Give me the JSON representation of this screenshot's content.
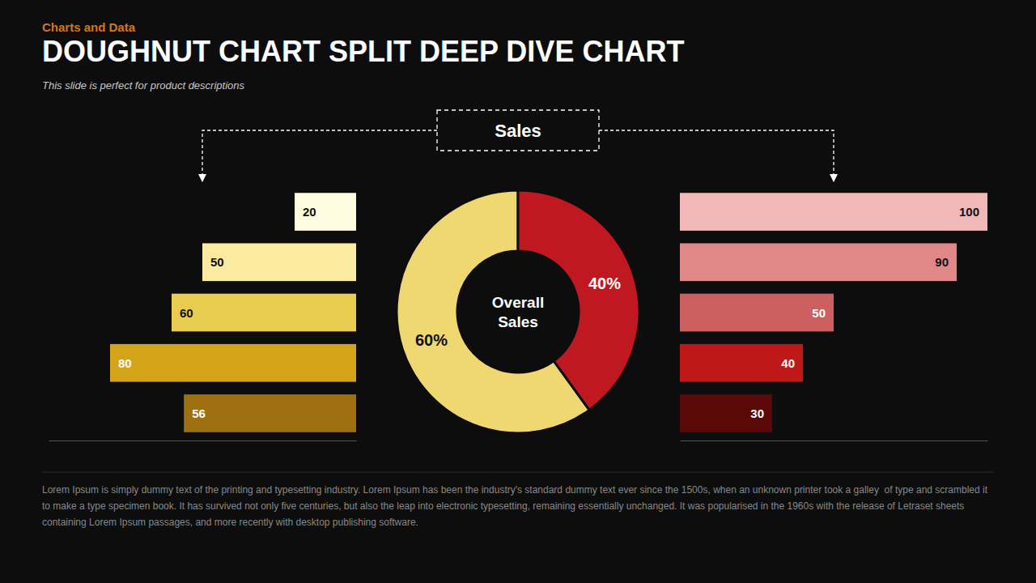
{
  "chart_data": [
    {
      "type": "donut",
      "title": "DOUGHNUT CHART SPLIT DEEP DIVE CHART",
      "subtitle": "This slide is perfect for product descriptions",
      "annotations": [
        "Charts and Data",
        "Overall\nSales",
        "Sales",
        "Lorem Ipsum is simply dummy text of the printing and typesetting industry. Lorem Ipsum has been the industry's standard dummy text ever since the 1500s, when an unknown printer took a galley  of type and scrambled it to make a type specimen book. It has survived not only five centuries, but also the leap into electronic typesetting, remaining essentially unchanged. It was popularised in the 1960s with the release of Letraset sheets containing Lorem Ipsum passages, and more recently with desktop publishing software."
      ],
      "values": [
        60,
        40
      ],
      "value_labels": [
        "60%",
        "40%"
      ],
      "colors": [
        "#f0d870",
        "#c01820"
      ],
      "data_labels": true
    },
    {
      "type": "bar",
      "orientation": "horizontal",
      "values": [
        20,
        50,
        60,
        80,
        56
      ],
      "colors": [
        "#fefce0",
        "#faeba0",
        "#e8cc50",
        "#d4a418",
        "#9e7010"
      ],
      "xlim": [
        0,
        100
      ],
      "tick_labels": false,
      "data_labels": true
    },
    {
      "type": "bar",
      "orientation": "horizontal",
      "values": [
        100,
        90,
        50,
        40,
        30
      ],
      "colors": [
        "#f2b8b8",
        "#e08888",
        "#cc6060",
        "#be1818",
        "#5a0808"
      ],
      "xlim": [
        0,
        100
      ],
      "tick_labels": false,
      "data_labels": true
    }
  ]
}
